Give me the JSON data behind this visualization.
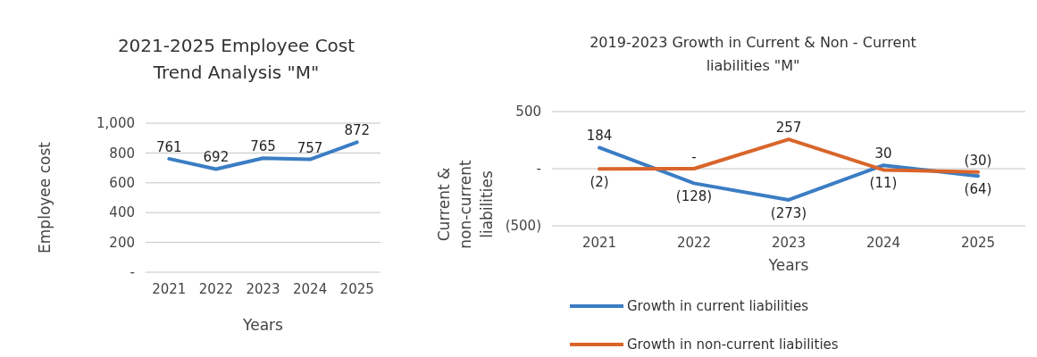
{
  "chart_data": [
    {
      "type": "line",
      "title": "2021-2025 Employee Cost Trend Analysis \"M\"",
      "xlabel": "Years",
      "ylabel": "Employee cost",
      "categories": [
        "2021",
        "2022",
        "2023",
        "2024",
        "2025"
      ],
      "series": [
        {
          "color": "#3b7dc4",
          "values": [
            761,
            692,
            765,
            757,
            872
          ]
        }
      ],
      "ylim": [
        0,
        1000
      ],
      "yticks": [
        {
          "value": 0,
          "label": "-"
        },
        200,
        400,
        600,
        800,
        {
          "value": 1000,
          "label": "1,000"
        }
      ],
      "grid": "y",
      "data_labels": true,
      "legend": false
    },
    {
      "type": "line",
      "title": "2019-2023 Growth in Current & Non - Current liabilities \"M\"",
      "xlabel": "Years",
      "ylabel": "Current & non-current liabilities",
      "categories": [
        "2021",
        "2022",
        "2023",
        "2024",
        "2025"
      ],
      "series": [
        {
          "name": "Growth in current liabilities",
          "color": "#3b7dc4",
          "values": [
            184,
            -128,
            -273,
            30,
            -64
          ],
          "value_labels": [
            "184",
            "(128)",
            "(273)",
            "30",
            "(64)"
          ]
        },
        {
          "name": "Growth in non-current liabilities",
          "color": "#d9652b",
          "values": [
            -2,
            0,
            257,
            -11,
            -30
          ],
          "value_labels": [
            "(2)",
            "-",
            "257",
            "(11)",
            "(30)"
          ]
        }
      ],
      "ylim": [
        -500,
        500
      ],
      "yticks": [
        {
          "value": -500,
          "label": "(500)"
        },
        {
          "value": 0,
          "label": "-"
        },
        500
      ],
      "grid": "y",
      "legend": "bottom"
    }
  ]
}
